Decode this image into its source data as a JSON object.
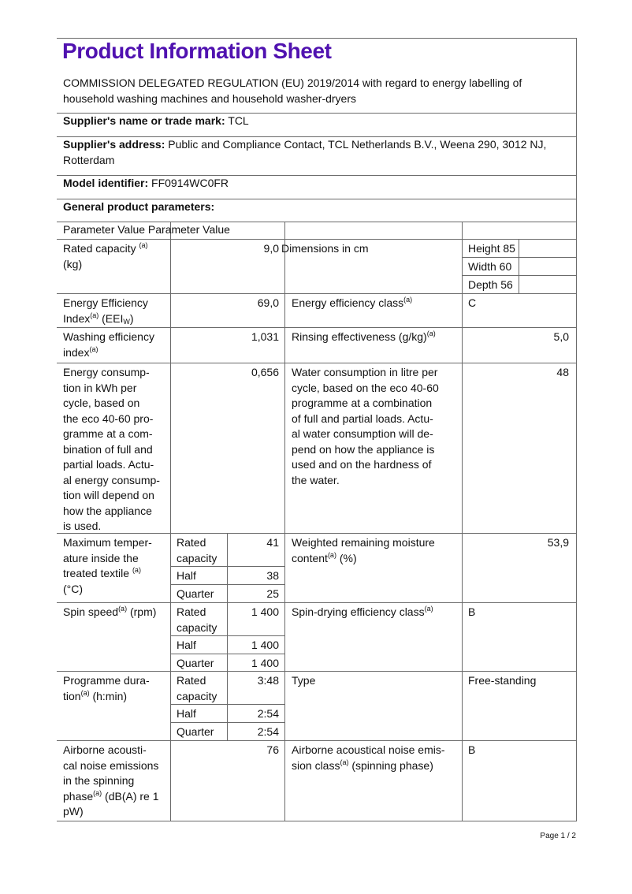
{
  "title": "Product Information Sheet",
  "regulation": [
    "COMMISSION DELEGATED REGULATION (EU) 2019/2014 with regard to energy labelling of",
    "household washing machines and household washer-dryers"
  ],
  "supplier_name": {
    "label": "Supplier's name or trade mark:",
    "value": " TCL"
  },
  "supplier_address": {
    "label": "Supplier's address:",
    "value": [
      " Public and Compliance Contact, TCL Netherlands B.V., Weena 290, 3012 NJ,",
      "Rotterdam"
    ]
  },
  "model": {
    "label": "Model identifier:",
    "value": " FF0914WC0FR"
  },
  "general_label": "General product parameters:",
  "table": {
    "header": [
      "Parameter Value Parameter Value"
    ],
    "rated_capacity": {
      "param": [
        [
          "Rated capacity ",
          {
            "sup": "(a)"
          }
        ],
        "  (kg)"
      ],
      "value": [
        "9,0"
      ],
      "param2": [
        "Dimensions in cm"
      ],
      "height": [
        "Height 85"
      ],
      "width": [
        "Width 60"
      ],
      "depth": [
        "Depth 56"
      ]
    },
    "eei": {
      "param": [
        "Energy Efficiency",
        [
          "Index",
          {
            "sup": "(a)"
          },
          "  (EEI",
          {
            "sub": "W"
          },
          ")"
        ]
      ],
      "value": [
        "69,0"
      ],
      "param2": [
        [
          "Energy efficiency class",
          {
            "sup": "(a)"
          }
        ]
      ],
      "value2": [
        "C"
      ]
    },
    "washing": {
      "param": [
        "Washing efficiency",
        [
          "index",
          {
            "sup": "(a)"
          }
        ]
      ],
      "value": [
        "1,031"
      ],
      "param2": [
        [
          "Rinsing effectiveness (g/kg)",
          {
            "sup": "(a)"
          }
        ]
      ],
      "value2": [
        "5,0"
      ]
    },
    "energy": {
      "param": [
        "Energy consump-",
        "tion in kWh per",
        "cycle, based on",
        "the eco 40-60 pro-",
        "gramme at a com-",
        "bination of full and",
        "partial loads. Actu-",
        "al energy consump-",
        "tion will depend on",
        "how the appliance",
        "is used."
      ],
      "value": [
        "0,656"
      ],
      "param2": [
        "Water consumption in litre per",
        "cycle, based on the eco 40-60",
        "programme at a combination",
        "of full and partial loads. Actu-",
        "al water consumption will de-",
        "pend on how the appliance is",
        "used and on the hardness of",
        "the water."
      ],
      "value2": [
        "48"
      ]
    },
    "temperature": {
      "param": [
        "Maximum temper-",
        "ature inside the",
        [
          "treated textile ",
          {
            "sup": "(a)"
          }
        ],
        "  (°C)"
      ],
      "sub_labels": [
        [
          "Rated",
          "capacity"
        ],
        [
          "Half"
        ],
        [
          "Quarter"
        ]
      ],
      "sub_values": [
        [
          "41"
        ],
        [
          "38"
        ],
        [
          "25"
        ]
      ],
      "param2": [
        "Weighted remaining moisture",
        [
          "content",
          {
            "sup": "(a)"
          },
          "  (%)"
        ]
      ],
      "value2": [
        "53,9"
      ]
    },
    "spin": {
      "param": [
        [
          "Spin speed",
          {
            "sup": "(a)"
          },
          "  (rpm)"
        ]
      ],
      "sub_labels": [
        [
          "Rated",
          "capacity"
        ],
        [
          "Half"
        ],
        [
          "Quarter"
        ]
      ],
      "sub_values": [
        [
          "1 400"
        ],
        [
          "1 400"
        ],
        [
          "1 400"
        ]
      ],
      "param2": [
        [
          "Spin-drying efficiency class",
          {
            "sup": "(a)"
          }
        ]
      ],
      "value2": [
        "B"
      ]
    },
    "duration": {
      "param": [
        "Programme dura-",
        [
          "tion",
          {
            "sup": "(a)"
          },
          "  (h:min)"
        ]
      ],
      "sub_labels": [
        [
          "Rated",
          "capacity"
        ],
        [
          "Half"
        ],
        [
          "Quarter"
        ]
      ],
      "sub_values": [
        [
          "3:48"
        ],
        [
          "2:54"
        ],
        [
          "2:54"
        ]
      ],
      "param2": [
        "Type"
      ],
      "value2": [
        "Free-standing"
      ]
    },
    "noise": {
      "param": [
        "Airborne acousti-",
        "cal noise emissions",
        "in the spinning",
        [
          "phase",
          {
            "sup": "(a)"
          },
          "  (dB(A) re 1"
        ],
        "pW)"
      ],
      "value": [
        "76"
      ],
      "param2": [
        "Airborne acoustical noise emis-",
        [
          "sion class",
          {
            "sup": "(a)"
          },
          "  (spinning phase)"
        ]
      ],
      "value2": [
        "B"
      ]
    }
  },
  "footer": "Page 1 / 2",
  "colors": {
    "title": "#5012b0",
    "rules": "#6a6a6a"
  }
}
